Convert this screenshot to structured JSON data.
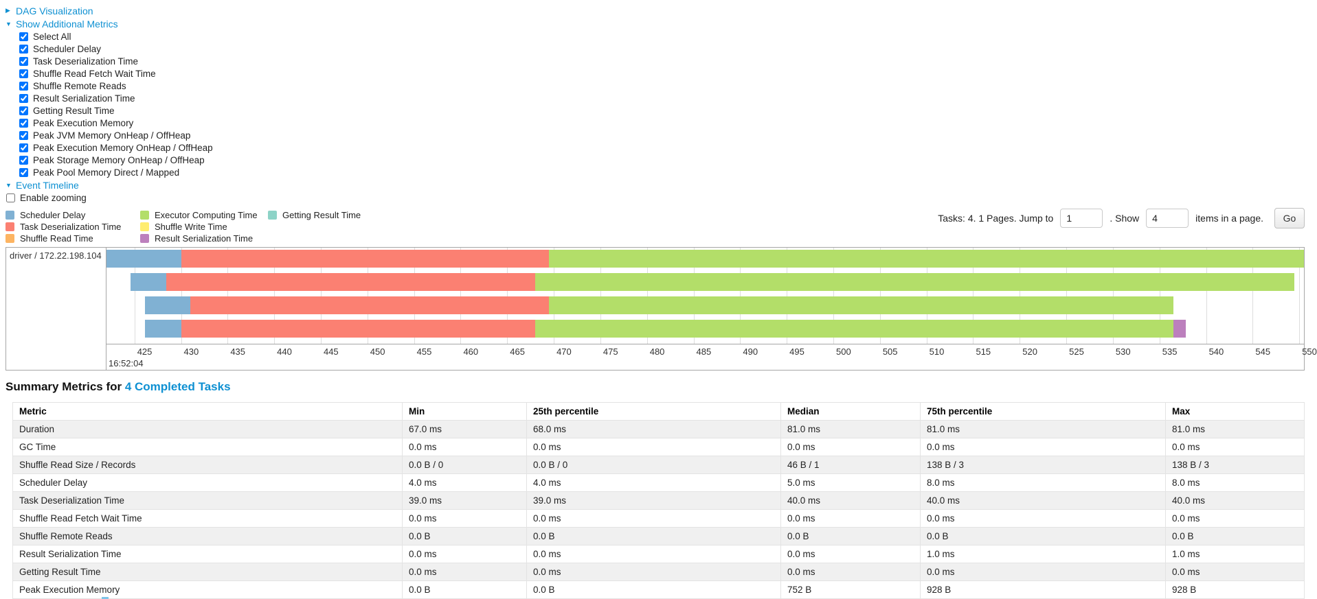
{
  "controls": {
    "dag_visualization_label": "DAG Visualization",
    "show_additional_metrics_label": "Show Additional Metrics",
    "metric_checkboxes": [
      "Select All",
      "Scheduler Delay",
      "Task Deserialization Time",
      "Shuffle Read Fetch Wait Time",
      "Shuffle Remote Reads",
      "Result Serialization Time",
      "Getting Result Time",
      "Peak Execution Memory",
      "Peak JVM Memory OnHeap / OffHeap",
      "Peak Execution Memory OnHeap / OffHeap",
      "Peak Storage Memory OnHeap / OffHeap",
      "Peak Pool Memory Direct / Mapped"
    ],
    "event_timeline_label": "Event Timeline",
    "enable_zooming_label": "Enable zooming",
    "enable_zooming_checked": false
  },
  "legend": {
    "columns": [
      [
        {
          "name": "scheduler-delay",
          "label": "Scheduler Delay",
          "color": "#80B1D3"
        },
        {
          "name": "task-deserialization",
          "label": "Task Deserialization Time",
          "color": "#FB8072"
        },
        {
          "name": "shuffle-read",
          "label": "Shuffle Read Time",
          "color": "#FDB462"
        }
      ],
      [
        {
          "name": "executor-computing",
          "label": "Executor Computing Time",
          "color": "#B3DE69"
        },
        {
          "name": "shuffle-write",
          "label": "Shuffle Write Time",
          "color": "#FFED6F"
        },
        {
          "name": "result-serialization",
          "label": "Result Serialization Time",
          "color": "#BC80BD"
        }
      ],
      [
        {
          "name": "getting-result",
          "label": "Getting Result Time",
          "color": "#8DD3C7"
        }
      ]
    ]
  },
  "pagination": {
    "prefix": "Tasks: 4. 1 Pages. Jump to",
    "jump_value": "1",
    "mid": ". Show",
    "show_value": "4",
    "suffix": "items in a page.",
    "go_label": "Go"
  },
  "chart_data": {
    "type": "timeline-gantt",
    "executor_label": "driver / 172.22.198.104",
    "x_axis": {
      "xmin": 422.0,
      "xmax": 550.5,
      "tick_step": 5,
      "ticks": [
        425,
        430,
        435,
        440,
        445,
        450,
        455,
        460,
        465,
        470,
        475,
        480,
        485,
        490,
        495,
        500,
        505,
        510,
        515,
        520,
        525,
        530,
        535,
        540,
        545,
        550
      ],
      "time_label": "16:52:04"
    },
    "colors": {
      "scheduler-delay": "#80B1D3",
      "task-deserialization": "#FB8072",
      "shuffle-read": "#FDB462",
      "executor-computing": "#B3DE69",
      "shuffle-write": "#FFED6F",
      "result-serialization": "#BC80BD",
      "getting-result": "#8DD3C7"
    },
    "tasks": [
      {
        "segments": [
          {
            "name": "scheduler-delay",
            "start": 422.0,
            "end": 430.0
          },
          {
            "name": "task-deserialization",
            "start": 430.0,
            "end": 469.5
          },
          {
            "name": "executor-computing",
            "start": 469.5,
            "end": 550.5
          }
        ]
      },
      {
        "segments": [
          {
            "name": "scheduler-delay",
            "start": 424.6,
            "end": 428.4
          },
          {
            "name": "task-deserialization",
            "start": 428.4,
            "end": 468.0
          },
          {
            "name": "executor-computing",
            "start": 468.0,
            "end": 549.5
          }
        ]
      },
      {
        "segments": [
          {
            "name": "scheduler-delay",
            "start": 426.1,
            "end": 431.0
          },
          {
            "name": "task-deserialization",
            "start": 431.0,
            "end": 469.5
          },
          {
            "name": "executor-computing",
            "start": 469.5,
            "end": 536.5
          }
        ]
      },
      {
        "segments": [
          {
            "name": "scheduler-delay",
            "start": 426.1,
            "end": 430.0
          },
          {
            "name": "task-deserialization",
            "start": 430.0,
            "end": 468.0
          },
          {
            "name": "executor-computing",
            "start": 468.0,
            "end": 536.5
          },
          {
            "name": "result-serialization",
            "start": 536.5,
            "end": 537.8
          }
        ]
      }
    ]
  },
  "summary": {
    "title_prefix": "Summary Metrics for ",
    "title_link": "4 Completed Tasks",
    "columns": [
      "Metric",
      "Min",
      "25th percentile",
      "Median",
      "75th percentile",
      "Max"
    ],
    "rows": [
      [
        "Duration",
        "67.0 ms",
        "68.0 ms",
        "81.0 ms",
        "81.0 ms",
        "81.0 ms"
      ],
      [
        "GC Time",
        "0.0 ms",
        "0.0 ms",
        "0.0 ms",
        "0.0 ms",
        "0.0 ms"
      ],
      [
        "Shuffle Read Size / Records",
        "0.0 B / 0",
        "0.0 B / 0",
        "46 B / 1",
        "138 B / 3",
        "138 B / 3"
      ],
      [
        "Scheduler Delay",
        "4.0 ms",
        "4.0 ms",
        "5.0 ms",
        "8.0 ms",
        "8.0 ms"
      ],
      [
        "Task Deserialization Time",
        "39.0 ms",
        "39.0 ms",
        "40.0 ms",
        "40.0 ms",
        "40.0 ms"
      ],
      [
        "Shuffle Read Fetch Wait Time",
        "0.0 ms",
        "0.0 ms",
        "0.0 ms",
        "0.0 ms",
        "0.0 ms"
      ],
      [
        "Shuffle Remote Reads",
        "0.0 B",
        "0.0 B",
        "0.0 B",
        "0.0 B",
        "0.0 B"
      ],
      [
        "Result Serialization Time",
        "0.0 ms",
        "0.0 ms",
        "0.0 ms",
        "1.0 ms",
        "1.0 ms"
      ],
      [
        "Getting Result Time",
        "0.0 ms",
        "0.0 ms",
        "0.0 ms",
        "0.0 ms",
        "0.0 ms"
      ],
      [
        "Peak Execution Memory",
        "0.0 B",
        "0.0 B",
        "752 B",
        "928 B",
        "928 B"
      ]
    ]
  }
}
